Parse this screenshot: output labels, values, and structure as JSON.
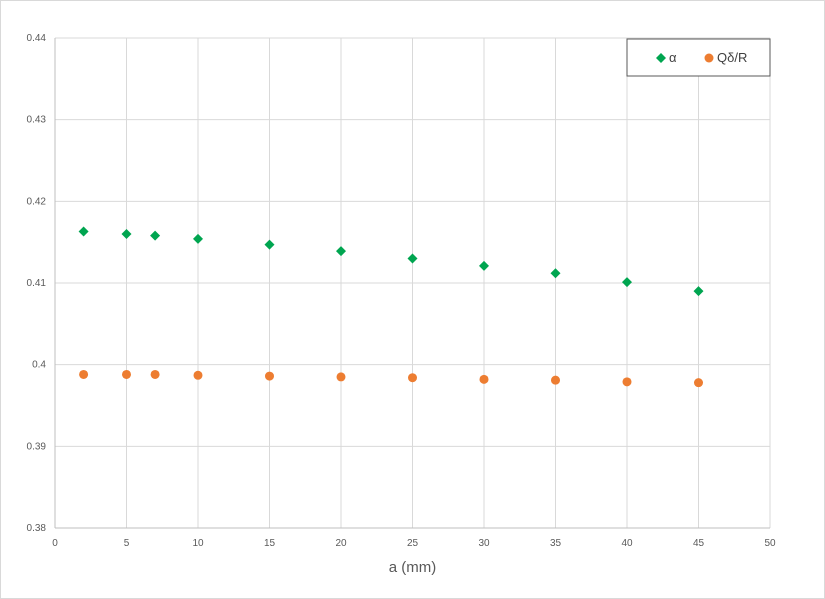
{
  "chart_data": {
    "type": "scatter",
    "title": "",
    "xlabel": "a (mm)",
    "ylabel": "",
    "xlim": [
      0,
      50
    ],
    "ylim": [
      0.38,
      0.44
    ],
    "x_ticks": [
      0,
      5,
      10,
      15,
      20,
      25,
      30,
      35,
      40,
      45,
      50
    ],
    "y_ticks": [
      0.38,
      0.39,
      0.4,
      0.41,
      0.42,
      0.43,
      0.44
    ],
    "y_tick_labels": [
      "0.38",
      "0.39",
      "0.4",
      "0.41",
      "0.42",
      "0.43",
      "0.44"
    ],
    "grid": true,
    "legend_position": "top-right",
    "series": [
      {
        "name": "α",
        "marker": "diamond",
        "color": "#00a550",
        "x": [
          2,
          5,
          7,
          10,
          15,
          20,
          25,
          30,
          35,
          40,
          45
        ],
        "y": [
          0.4163,
          0.416,
          0.4158,
          0.4154,
          0.4147,
          0.4139,
          0.413,
          0.4121,
          0.4112,
          0.4101,
          0.409
        ]
      },
      {
        "name": "Qδ/R",
        "marker": "circle",
        "color": "#ed7d31",
        "x": [
          2,
          5,
          7,
          10,
          15,
          20,
          25,
          30,
          35,
          40,
          45
        ],
        "y": [
          0.3988,
          0.3988,
          0.3988,
          0.3987,
          0.3986,
          0.3985,
          0.3984,
          0.3982,
          0.3981,
          0.3979,
          0.3978
        ]
      }
    ]
  }
}
